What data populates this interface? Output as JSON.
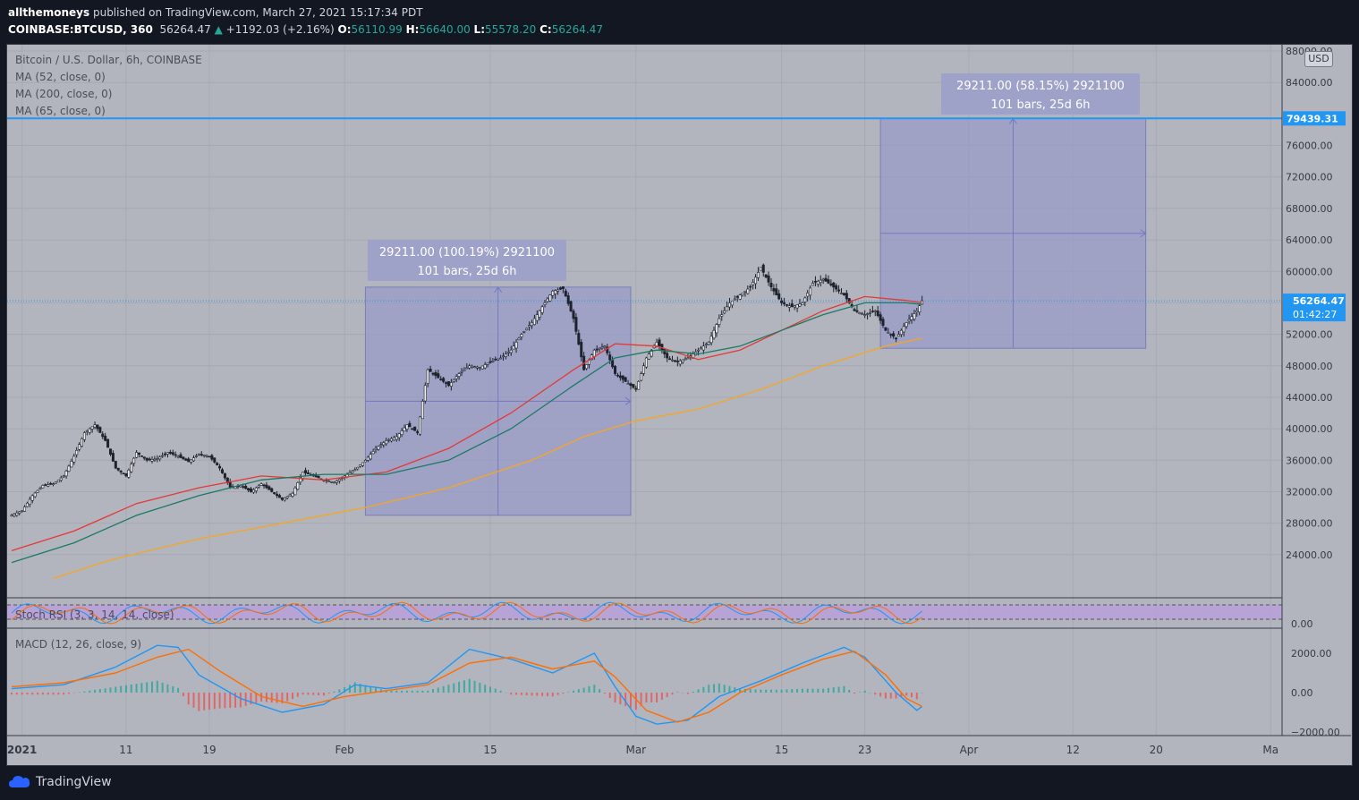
{
  "header": {
    "author": "allthemoneys",
    "published_text": "published on TradingView.com, March 27, 2021 15:17:34 PDT",
    "symbol": "COINBASE:BTCUSD, 360",
    "last": "56264.47",
    "change": "+1192.03 (+2.16%)",
    "o_label": "O:",
    "o_value": "56110.99",
    "h_label": "H:",
    "h_value": "56640.00",
    "l_label": "L:",
    "l_value": "55578.20",
    "c_label": "C:",
    "c_value": "56264.47"
  },
  "legend": {
    "title": "Bitcoin / U.S. Dollar, 6h, COINBASE",
    "ma1": "MA (52, close, 0)",
    "ma2": "MA (200, close, 0)",
    "ma3": "MA (65, close, 0)",
    "stoch": "Stoch RSI (3, 3, 14, 14, close)",
    "macd": "MACD (12, 26, close, 9)"
  },
  "currency": "USD",
  "price_labels": {
    "target": "79439.31",
    "last": "56264.47",
    "countdown": "01:42:27"
  },
  "annotations": {
    "box1_line1": "29211.00 (100.19%) 2921100",
    "box1_line2": "101 bars, 25d 6h",
    "box2_line1": "29211.00 (58.15%) 2921100",
    "box2_line2": "101 bars, 25d 6h"
  },
  "footer": {
    "brand": "TradingView"
  },
  "colors": {
    "background": "#b2b5be",
    "ma52": "#e53935",
    "ma65": "#1b7a63",
    "ma200": "#f5a623",
    "macd_line": "#2196f3",
    "signal_line": "#ff6d00",
    "range_box": "#9598c9",
    "hline": "#2196f3"
  },
  "chart_data": {
    "type": "candlestick",
    "title": "Bitcoin / U.S. Dollar, 6h, COINBASE",
    "y_ticks": [
      88000,
      84000,
      76000,
      72000,
      68000,
      64000,
      60000,
      56000,
      52000,
      48000,
      44000,
      40000,
      36000,
      32000,
      28000,
      24000
    ],
    "y_tick_labels": [
      "88000.00",
      "84000.00",
      "76000.00",
      "72000.00",
      "68000.00",
      "64000.00",
      "60000.00",
      "56000.00",
      "52000.00",
      "48000.00",
      "44000.00",
      "40000.00",
      "36000.00",
      "32000.00",
      "28000.00",
      "24000.00"
    ],
    "ylim": [
      19000,
      90500
    ],
    "x_tick_labels": [
      "2021",
      "11",
      "19",
      "Feb",
      "15",
      "Mar",
      "15",
      "23",
      "Apr",
      "12",
      "20",
      "Ma"
    ],
    "x_tick_days": [
      1,
      11,
      19,
      32,
      46,
      60,
      74,
      82,
      92,
      102,
      110,
      121
    ],
    "last_day": 87.5,
    "price_path": [
      [
        0,
        29000
      ],
      [
        1,
        29600
      ],
      [
        2,
        31500
      ],
      [
        3,
        32800
      ],
      [
        4,
        33000
      ],
      [
        5,
        34000
      ],
      [
        6,
        36500
      ],
      [
        7,
        39500
      ],
      [
        8,
        40500
      ],
      [
        9,
        38500
      ],
      [
        10,
        35000
      ],
      [
        11,
        34000
      ],
      [
        12,
        37000
      ],
      [
        13,
        36000
      ],
      [
        14,
        36200
      ],
      [
        15,
        37000
      ],
      [
        16,
        36500
      ],
      [
        17,
        35800
      ],
      [
        18,
        36800
      ],
      [
        19,
        36500
      ],
      [
        20,
        35000
      ],
      [
        21,
        32500
      ],
      [
        22,
        32800
      ],
      [
        23,
        32000
      ],
      [
        24,
        33000
      ],
      [
        25,
        32000
      ],
      [
        26,
        31000
      ],
      [
        27,
        31800
      ],
      [
        28,
        34500
      ],
      [
        29,
        34000
      ],
      [
        30,
        33500
      ],
      [
        31,
        33200
      ],
      [
        32,
        34000
      ],
      [
        33,
        34800
      ],
      [
        34,
        36000
      ],
      [
        35,
        37500
      ],
      [
        36,
        38500
      ],
      [
        37,
        39000
      ],
      [
        38,
        40500
      ],
      [
        39,
        39500
      ],
      [
        40,
        47500
      ],
      [
        41,
        46500
      ],
      [
        42,
        45500
      ],
      [
        43,
        47000
      ],
      [
        44,
        48000
      ],
      [
        45,
        47800
      ],
      [
        46,
        48500
      ],
      [
        47,
        49000
      ],
      [
        48,
        50000
      ],
      [
        49,
        52000
      ],
      [
        50,
        53500
      ],
      [
        51,
        55500
      ],
      [
        52,
        57500
      ],
      [
        53,
        57800
      ],
      [
        54,
        54000
      ],
      [
        55,
        47500
      ],
      [
        56,
        50000
      ],
      [
        57,
        50500
      ],
      [
        58,
        47000
      ],
      [
        59,
        46000
      ],
      [
        60,
        45000
      ],
      [
        61,
        49000
      ],
      [
        62,
        51000
      ],
      [
        63,
        49000
      ],
      [
        64,
        48500
      ],
      [
        65,
        49000
      ],
      [
        66,
        50000
      ],
      [
        67,
        51000
      ],
      [
        68,
        54000
      ],
      [
        69,
        56000
      ],
      [
        70,
        57000
      ],
      [
        71,
        58000
      ],
      [
        72,
        60500
      ],
      [
        73,
        58000
      ],
      [
        74,
        56000
      ],
      [
        75,
        55500
      ],
      [
        76,
        56000
      ],
      [
        77,
        58500
      ],
      [
        78,
        59000
      ],
      [
        79,
        58000
      ],
      [
        80,
        57000
      ],
      [
        81,
        55000
      ],
      [
        82,
        54500
      ],
      [
        83,
        55000
      ],
      [
        84,
        52500
      ],
      [
        85,
        51500
      ],
      [
        86,
        53500
      ],
      [
        87,
        55000
      ],
      [
        87.5,
        56264
      ]
    ],
    "series": [
      {
        "name": "MA 52",
        "color": "#e53935",
        "points": [
          [
            0,
            24500
          ],
          [
            6,
            27000
          ],
          [
            12,
            30500
          ],
          [
            18,
            32500
          ],
          [
            24,
            34000
          ],
          [
            30,
            33500
          ],
          [
            36,
            34500
          ],
          [
            42,
            37500
          ],
          [
            48,
            42000
          ],
          [
            54,
            47500
          ],
          [
            58,
            50800
          ],
          [
            62,
            50500
          ],
          [
            66,
            48800
          ],
          [
            70,
            50000
          ],
          [
            74,
            52500
          ],
          [
            78,
            55000
          ],
          [
            82,
            56800
          ],
          [
            86,
            56300
          ],
          [
            87.5,
            56000
          ]
        ]
      },
      {
        "name": "MA 65",
        "color": "#1b7a63",
        "points": [
          [
            0,
            23000
          ],
          [
            6,
            25500
          ],
          [
            12,
            29000
          ],
          [
            18,
            31500
          ],
          [
            24,
            33500
          ],
          [
            30,
            34200
          ],
          [
            36,
            34200
          ],
          [
            42,
            36000
          ],
          [
            48,
            40000
          ],
          [
            54,
            45500
          ],
          [
            58,
            49000
          ],
          [
            62,
            50000
          ],
          [
            66,
            49500
          ],
          [
            70,
            50500
          ],
          [
            74,
            52500
          ],
          [
            78,
            54500
          ],
          [
            82,
            56000
          ],
          [
            86,
            56000
          ],
          [
            87.5,
            55800
          ]
        ]
      },
      {
        "name": "MA 200",
        "color": "#f5a623",
        "points": [
          [
            4,
            21000
          ],
          [
            10,
            23500
          ],
          [
            18,
            26000
          ],
          [
            26,
            28000
          ],
          [
            34,
            30000
          ],
          [
            42,
            32500
          ],
          [
            50,
            36000
          ],
          [
            55,
            39000
          ],
          [
            60,
            41000
          ],
          [
            66,
            42500
          ],
          [
            72,
            45000
          ],
          [
            78,
            48000
          ],
          [
            84,
            50500
          ],
          [
            87.5,
            51500
          ]
        ]
      }
    ],
    "range_boxes": [
      {
        "from_day": 34,
        "to_day": 59.5,
        "low": 29000,
        "high": 58000,
        "label": "29211.00 (100.19%) 2921100",
        "label2": "101 bars, 25d 6h"
      },
      {
        "from_day": 83.5,
        "to_day": 109,
        "low": 50228,
        "high": 79439.31,
        "label": "29211.00 (58.15%) 2921100",
        "label2": "101 bars, 25d 6h"
      }
    ],
    "horizontal_line": 79439.31,
    "last_price": 56264.47,
    "stoch_rsi": {
      "title": "Stoch RSI (3, 3, 14, 14, close)",
      "y_tick_labels": [
        "0.00"
      ]
    },
    "macd": {
      "title": "MACD (12, 26, close, 9)",
      "y_ticks": [
        2000,
        0,
        -2000
      ],
      "y_tick_labels": [
        "2000.00",
        "0.00",
        "−2000.00"
      ],
      "macd_line": [
        [
          0,
          200
        ],
        [
          5,
          400
        ],
        [
          10,
          1300
        ],
        [
          14,
          2400
        ],
        [
          16,
          2300
        ],
        [
          18,
          900
        ],
        [
          22,
          -300
        ],
        [
          26,
          -1000
        ],
        [
          30,
          -600
        ],
        [
          33,
          400
        ],
        [
          36,
          200
        ],
        [
          40,
          500
        ],
        [
          44,
          2200
        ],
        [
          48,
          1700
        ],
        [
          52,
          1000
        ],
        [
          56,
          2000
        ],
        [
          58,
          300
        ],
        [
          60,
          -1200
        ],
        [
          62,
          -1600
        ],
        [
          65,
          -1400
        ],
        [
          68,
          -200
        ],
        [
          72,
          600
        ],
        [
          76,
          1500
        ],
        [
          80,
          2300
        ],
        [
          82,
          1800
        ],
        [
          85,
          0
        ],
        [
          87,
          -900
        ],
        [
          87.5,
          -700
        ]
      ],
      "signal_line": [
        [
          0,
          300
        ],
        [
          5,
          500
        ],
        [
          10,
          1000
        ],
        [
          14,
          1800
        ],
        [
          17,
          2200
        ],
        [
          20,
          1100
        ],
        [
          24,
          -200
        ],
        [
          28,
          -700
        ],
        [
          32,
          -200
        ],
        [
          36,
          100
        ],
        [
          40,
          400
        ],
        [
          44,
          1500
        ],
        [
          48,
          1800
        ],
        [
          52,
          1200
        ],
        [
          56,
          1600
        ],
        [
          58,
          800
        ],
        [
          61,
          -900
        ],
        [
          64,
          -1500
        ],
        [
          67,
          -1000
        ],
        [
          70,
          0
        ],
        [
          74,
          900
        ],
        [
          78,
          1700
        ],
        [
          81,
          2100
        ],
        [
          84,
          900
        ],
        [
          86,
          -300
        ],
        [
          87.5,
          -700
        ]
      ]
    }
  }
}
